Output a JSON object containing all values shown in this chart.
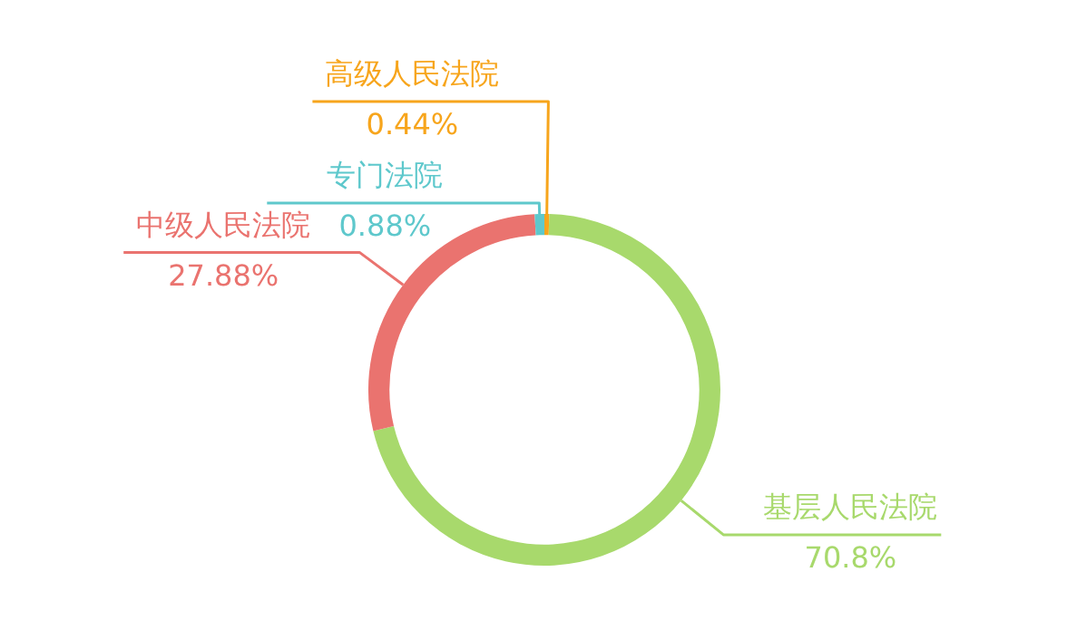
{
  "chart_data": {
    "type": "donut",
    "categories": [
      "高级人民法院",
      "基层人民法院",
      "中级人民法院",
      "专门法院"
    ],
    "values": [
      0.44,
      70.8,
      27.88,
      0.88
    ],
    "value_labels": [
      "0.44%",
      "70.8%",
      "27.88%",
      "0.88%"
    ],
    "colors": [
      "#f7a51c",
      "#a8d96c",
      "#ea736f",
      "#5ec8cc"
    ],
    "legend": false
  }
}
